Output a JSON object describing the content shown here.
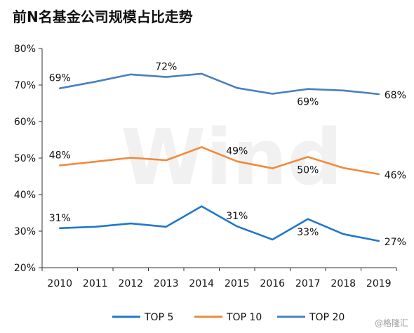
{
  "title": "前N名基金公司规模占比走势",
  "watermark_text": "Wind",
  "credit": "@格隆汇",
  "chart_data": {
    "type": "line",
    "title": "前N名基金公司规模占比走势",
    "x": [
      "2010",
      "2011",
      "2012",
      "2013",
      "2014",
      "2015",
      "2016",
      "2017",
      "2018",
      "2019"
    ],
    "ylim": [
      20,
      80
    ],
    "yticks": [
      "20%",
      "30%",
      "40%",
      "50%",
      "60%",
      "70%",
      "80%"
    ],
    "grid": false,
    "legend_position": "bottom",
    "series": [
      {
        "name": "TOP 5",
        "color": "#1f77d0",
        "values": [
          30.8,
          31.2,
          32.1,
          31.2,
          36.8,
          31.3,
          27.7,
          33.3,
          29.2,
          27.3
        ]
      },
      {
        "name": "TOP 10",
        "color": "#f08a3c",
        "values": [
          48.0,
          49.0,
          50.1,
          49.4,
          53.0,
          49.1,
          47.2,
          50.3,
          47.3,
          45.6
        ]
      },
      {
        "name": "TOP 20",
        "color": "#4a7fbf",
        "values": [
          69.1,
          70.9,
          72.9,
          72.2,
          73.1,
          69.2,
          67.6,
          68.9,
          68.5,
          67.5
        ]
      }
    ],
    "data_labels": [
      {
        "series": 0,
        "index": 0,
        "text": "31%",
        "pos": "above"
      },
      {
        "series": 0,
        "index": 5,
        "text": "31%",
        "pos": "above"
      },
      {
        "series": 0,
        "index": 7,
        "text": "33%",
        "pos": "below"
      },
      {
        "series": 0,
        "index": 9,
        "text": "27%",
        "pos": "right"
      },
      {
        "series": 1,
        "index": 0,
        "text": "48%",
        "pos": "above"
      },
      {
        "series": 1,
        "index": 5,
        "text": "49%",
        "pos": "above"
      },
      {
        "series": 1,
        "index": 7,
        "text": "50%",
        "pos": "below"
      },
      {
        "series": 1,
        "index": 9,
        "text": "46%",
        "pos": "right"
      },
      {
        "series": 2,
        "index": 0,
        "text": "69%",
        "pos": "above"
      },
      {
        "series": 2,
        "index": 3,
        "text": "72%",
        "pos": "above"
      },
      {
        "series": 2,
        "index": 7,
        "text": "69%",
        "pos": "below"
      },
      {
        "series": 2,
        "index": 9,
        "text": "68%",
        "pos": "right"
      }
    ]
  }
}
